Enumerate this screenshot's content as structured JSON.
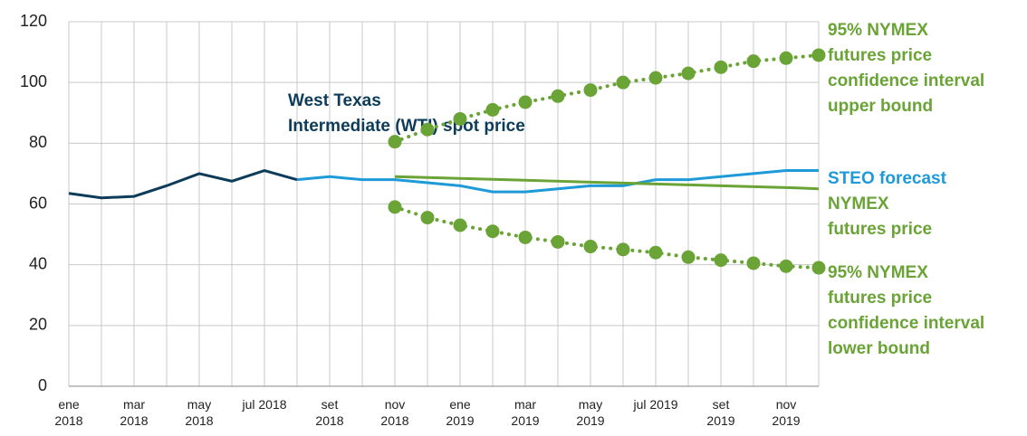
{
  "chart_data": {
    "type": "line",
    "categories": [
      "ene\n2018",
      null,
      "mar\n2018",
      null,
      "may\n2018",
      null,
      "jul 2018",
      null,
      "set\n2018",
      null,
      "nov\n2018",
      null,
      "ene\n2019",
      null,
      "mar\n2019",
      null,
      "may\n2019",
      null,
      "jul 2019",
      null,
      "set\n2019",
      null,
      "nov\n2019",
      null
    ],
    "ylim": [
      0,
      120
    ],
    "yticks": [
      0,
      20,
      40,
      60,
      80,
      100,
      120
    ],
    "grid": true,
    "series": [
      {
        "name": "West Texas\nIntermediate (WTI) spot price",
        "color": "#0c3c5a",
        "style": "solid",
        "values": [
          63.5,
          62,
          62.5,
          66,
          70,
          67.5,
          71,
          68,
          null,
          null,
          null,
          null,
          null,
          null,
          null,
          null,
          null,
          null,
          null,
          null,
          null,
          null,
          null,
          null
        ]
      },
      {
        "name": "STEO forecast",
        "color": "#1e9ad8",
        "style": "solid",
        "values": [
          null,
          null,
          null,
          null,
          null,
          null,
          null,
          68,
          69,
          68,
          68,
          67,
          66,
          64,
          64,
          65,
          66,
          66,
          68,
          68,
          69,
          70,
          71,
          71
        ]
      },
      {
        "name": "NYMEX\nfutures price",
        "color": "#6aa336",
        "style": "solid",
        "values": [
          null,
          null,
          null,
          null,
          null,
          null,
          null,
          null,
          null,
          null,
          69,
          68.7,
          68.4,
          68.1,
          67.8,
          67.5,
          67.2,
          66.9,
          66.6,
          66.3,
          66,
          65.7,
          65.4,
          65
        ]
      },
      {
        "name": "95% NYMEX\nfutures price\nconfidence interval\nupper bound",
        "color": "#6aa336",
        "style": "dotted",
        "values": [
          null,
          null,
          null,
          null,
          null,
          null,
          null,
          null,
          null,
          null,
          80.5,
          84.5,
          88,
          91,
          93.5,
          95.5,
          97.5,
          100,
          101.5,
          103,
          105,
          107,
          108,
          109
        ]
      },
      {
        "name": "95% NYMEX\nfutures price\nconfidence interval\nlower bound",
        "color": "#6aa336",
        "style": "dotted",
        "values": [
          null,
          null,
          null,
          null,
          null,
          null,
          null,
          null,
          null,
          null,
          59,
          55.5,
          53,
          51,
          49,
          47.5,
          46,
          45,
          44,
          42.5,
          41.5,
          40.5,
          39.5,
          39
        ]
      }
    ]
  }
}
